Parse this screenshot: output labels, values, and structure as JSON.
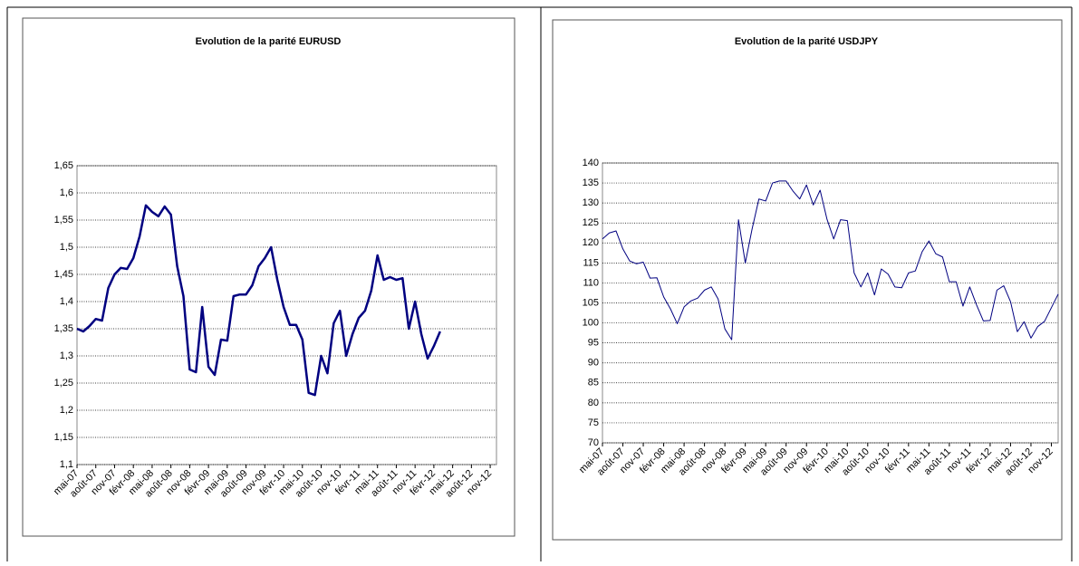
{
  "chart_data": [
    {
      "type": "line",
      "title": "Evolution de la parité EURUSD",
      "categories": [
        "mai-07",
        null,
        null,
        "août-07",
        null,
        null,
        "nov-07",
        null,
        null,
        "févr-08",
        null,
        null,
        "mai-08",
        null,
        null,
        "août-08",
        null,
        null,
        "nov-08",
        null,
        null,
        "févr-09",
        null,
        null,
        "mai-09",
        null,
        null,
        "août-09",
        null,
        null,
        "nov-09",
        null,
        null,
        "févr-10",
        null,
        null,
        "mai-10",
        null,
        null,
        "août-10",
        null,
        null,
        "nov-10",
        null,
        null,
        "févr-11",
        null,
        null,
        "mai-11",
        null,
        null,
        "août-11",
        null,
        null,
        "nov-11",
        null,
        null,
        "févr-12",
        null,
        null,
        "mai-12",
        null,
        null,
        "août-12",
        null,
        null,
        "nov-12",
        null
      ],
      "series": [
        {
          "color": "#000080",
          "values": [
            1.35,
            1.345,
            1.355,
            1.368,
            1.365,
            1.425,
            1.45,
            1.462,
            1.46,
            1.48,
            1.52,
            1.577,
            1.565,
            1.557,
            1.575,
            1.56,
            1.465,
            1.41,
            1.275,
            1.27,
            1.39,
            1.28,
            1.265,
            1.33,
            1.328,
            1.41,
            1.413,
            1.413,
            1.43,
            1.465,
            1.48,
            1.5,
            1.44,
            1.39,
            1.357,
            1.357,
            1.33,
            1.232,
            1.228,
            1.3,
            1.268,
            1.36,
            1.383,
            1.3,
            1.34,
            1.37,
            1.383,
            1.42,
            1.485,
            1.44,
            1.445,
            1.44,
            1.443,
            1.35,
            1.4,
            1.34,
            1.295,
            1.318,
            1.345,
            null,
            null,
            null,
            null,
            null,
            null,
            null,
            null,
            null
          ]
        }
      ],
      "ylim": [
        1.1,
        1.65
      ],
      "yticks": [
        {
          "value": 1.1,
          "label": "1,1"
        },
        {
          "value": 1.15,
          "label": "1,15"
        },
        {
          "value": 1.2,
          "label": "1,2"
        },
        {
          "value": 1.25,
          "label": "1,25"
        },
        {
          "value": 1.3,
          "label": "1,3"
        },
        {
          "value": 1.35,
          "label": "1,35"
        },
        {
          "value": 1.4,
          "label": "1,4"
        },
        {
          "value": 1.45,
          "label": "1,45"
        },
        {
          "value": 1.5,
          "label": "1,5"
        },
        {
          "value": 1.55,
          "label": "1,55"
        },
        {
          "value": 1.6,
          "label": "1,6"
        },
        {
          "value": 1.65,
          "label": "1,65"
        }
      ],
      "grid": true
    },
    {
      "type": "line",
      "title": "Evolution de la parité USDJPY",
      "categories": [
        "mai-07",
        null,
        null,
        "août-07",
        null,
        null,
        "nov-07",
        null,
        null,
        "févr-08",
        null,
        null,
        "mai-08",
        null,
        null,
        "août-08",
        null,
        null,
        "nov-08",
        null,
        null,
        "févr-09",
        null,
        null,
        "mai-09",
        null,
        null,
        "août-09",
        null,
        null,
        "nov-09",
        null,
        null,
        "févr-10",
        null,
        null,
        "mai-10",
        null,
        null,
        "août-10",
        null,
        null,
        "nov-10",
        null,
        null,
        "févr-11",
        null,
        null,
        "mai-11",
        null,
        null,
        "août-11",
        null,
        null,
        "nov-11",
        null,
        null,
        "févr-12",
        null,
        null,
        "mai-12",
        null,
        null,
        "août-12",
        null,
        null,
        "nov-12",
        null
      ],
      "series": [
        {
          "color": "#000080",
          "values": [
            121,
            122.5,
            123,
            118.5,
            115.5,
            114.8,
            115.2,
            111.2,
            111.3,
            106.5,
            103.5,
            99.8,
            104,
            105.5,
            106.2,
            108.2,
            109,
            106,
            98.5,
            95.8,
            125.8,
            115,
            123.5,
            131,
            130.5,
            135,
            135.5,
            135.5,
            133,
            131,
            134.5,
            129.5,
            133.2,
            126,
            121,
            125.8,
            125.6,
            112.5,
            109,
            112.5,
            107,
            113.5,
            112.2,
            109,
            108.8,
            112.5,
            113,
            117.8,
            120.5,
            117.3,
            116.5,
            110.3,
            110.3,
            104.2,
            109,
            104.5,
            100.5,
            100.6,
            108.2,
            109.3,
            105.3,
            97.8,
            100.3,
            96.2,
            99.1,
            100.4,
            103.8,
            107.2
          ]
        }
      ],
      "ylim": [
        70,
        140
      ],
      "yticks": [
        70,
        75,
        80,
        85,
        90,
        95,
        100,
        105,
        110,
        115,
        120,
        125,
        130,
        135,
        140
      ],
      "grid": true
    }
  ]
}
